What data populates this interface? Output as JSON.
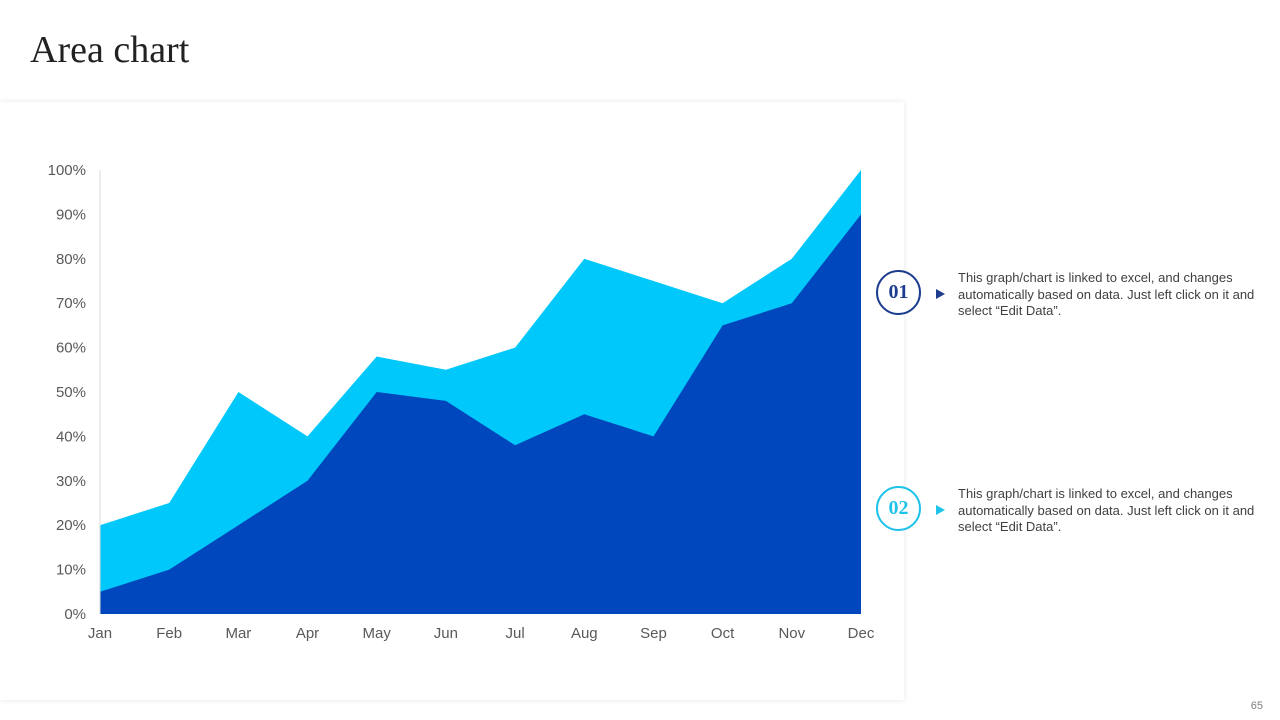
{
  "page": {
    "title": "Area chart",
    "page_number": "65"
  },
  "notes": [
    {
      "badge": "01",
      "text": "This graph/chart is linked to excel, and changes automatically based on data. Just left click on it and select “Edit Data”."
    },
    {
      "badge": "02",
      "text": "This graph/chart is linked to excel, and changes automatically based on data. Just left click on it and select “Edit Data”."
    }
  ],
  "colors": {
    "series_front": "#0047bd",
    "series_back": "#00c8fa",
    "badge_1": "#1d3d8f",
    "badge_2": "#1fc3ea"
  },
  "icons": [
    "arrow-right-icon"
  ],
  "chart_data": {
    "type": "area",
    "categories": [
      "Jan",
      "Feb",
      "Mar",
      "Apr",
      "May",
      "Jun",
      "Jul",
      "Aug",
      "Sep",
      "Oct",
      "Nov",
      "Dec"
    ],
    "series": [
      {
        "values": [
          20,
          25,
          50,
          40,
          58,
          55,
          60,
          80,
          75,
          70,
          80,
          100
        ]
      },
      {
        "values": [
          5,
          10,
          20,
          30,
          50,
          48,
          38,
          45,
          40,
          65,
          70,
          90
        ]
      }
    ],
    "y_ticks": [
      "0%",
      "10%",
      "20%",
      "30%",
      "40%",
      "50%",
      "60%",
      "70%",
      "80%",
      "90%",
      "100%"
    ],
    "ylim": [
      0,
      100
    ],
    "title": "",
    "xlabel": "",
    "ylabel": "",
    "grid": false,
    "legend": "none"
  }
}
